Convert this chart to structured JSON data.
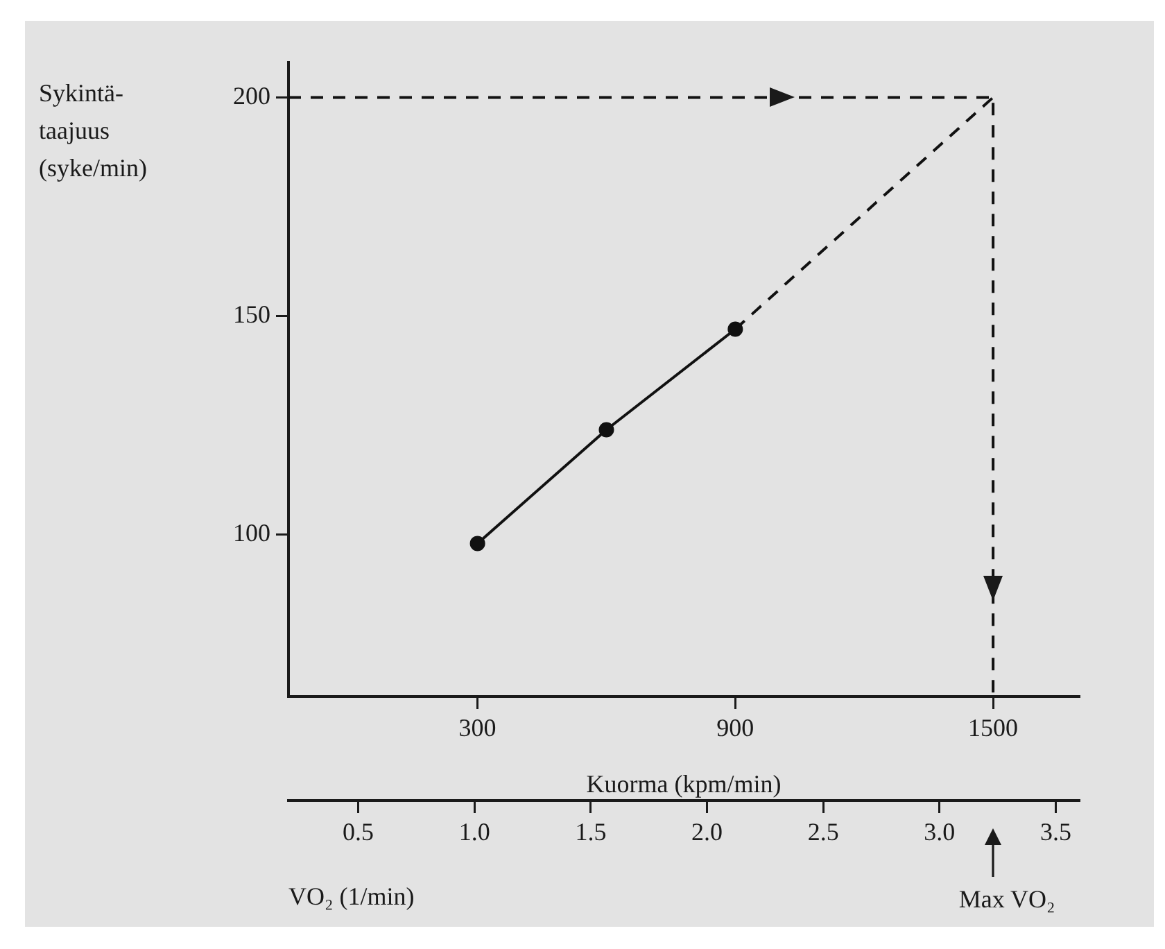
{
  "chart_data": {
    "type": "line",
    "xlabel": "Kuorma (kpm/min)",
    "ylabel": "Sykintä-taajuus (syke/min)",
    "x2label": "VO₂ (1/min)",
    "xlim": [
      -140,
      1700
    ],
    "xticks": [
      300,
      900,
      1500
    ],
    "ylim": [
      63,
      208
    ],
    "yticks": [
      100,
      150,
      200
    ],
    "x2lim": [
      0.2,
      3.6
    ],
    "x2ticks": [
      0.5,
      {
        "value": 1,
        "label": "1.0"
      },
      1.5,
      {
        "value": 2,
        "label": "2.0"
      },
      2.5,
      {
        "value": 3,
        "label": "3.0"
      },
      3.5
    ],
    "series": [
      {
        "color": "#111111",
        "x": [
          300,
          600,
          900
        ],
        "values": [
          98,
          124,
          147
        ],
        "marker": "circle",
        "line_style": "solid"
      },
      {
        "color": "#111111",
        "x": [
          900,
          1500
        ],
        "values": [
          147,
          200
        ],
        "marker": "none",
        "line_style": "dashed"
      },
      {
        "color": "#111111",
        "x": [
          -140,
          1500,
          1500
        ],
        "values": [
          200,
          200,
          63
        ],
        "marker": "none",
        "line_style": "dashed"
      }
    ],
    "annotations": [
      "Max VO₂"
    ],
    "grid": false,
    "legend": false
  }
}
